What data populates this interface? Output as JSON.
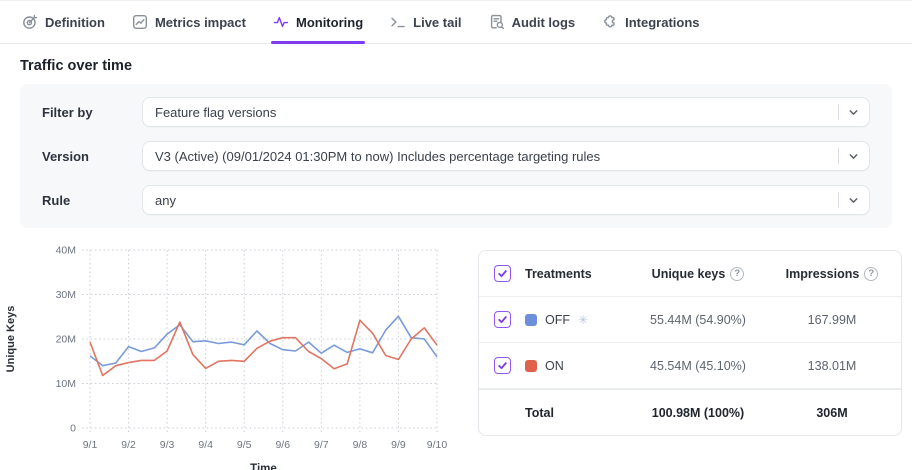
{
  "tabs": [
    {
      "label": "Definition",
      "icon": "definition-target-icon",
      "active": false
    },
    {
      "label": "Metrics impact",
      "icon": "metrics-chart-icon",
      "active": false
    },
    {
      "label": "Monitoring",
      "icon": "monitoring-pulse-icon",
      "active": true
    },
    {
      "label": "Live tail",
      "icon": "live-tail-terminal-icon",
      "active": false
    },
    {
      "label": "Audit logs",
      "icon": "audit-logs-doc-search-icon",
      "active": false
    },
    {
      "label": "Integrations",
      "icon": "integrations-puzzle-icon",
      "active": false
    }
  ],
  "section": {
    "title": "Traffic over time"
  },
  "filters": {
    "rows": [
      {
        "label": "Filter by",
        "value": "Feature flag versions"
      },
      {
        "label": "Version",
        "value": "V3 (Active) (09/01/2024 01:30PM to now) Includes percentage targeting rules"
      },
      {
        "label": "Rule",
        "value": "any"
      }
    ]
  },
  "chart_data": {
    "type": "line",
    "title": "Traffic over time",
    "xlabel": "Time",
    "ylabel": "Unique Keys",
    "ylim": [
      0,
      40
    ],
    "y_ticks": [
      {
        "v": 0,
        "label": "0"
      },
      {
        "v": 10,
        "label": "10M"
      },
      {
        "v": 20,
        "label": "20M"
      },
      {
        "v": 30,
        "label": "30M"
      },
      {
        "v": 40,
        "label": "40M"
      }
    ],
    "x_ticks": [
      "9/1",
      "9/2",
      "9/3",
      "9/4",
      "9/5",
      "9/6",
      "9/7",
      "9/8",
      "9/9",
      "9/10"
    ],
    "x_range_days": [
      0,
      9
    ],
    "grid": "dotted",
    "legend_position": "table-right",
    "x": [
      0,
      0.33,
      0.67,
      1,
      1.33,
      1.67,
      2,
      2.33,
      2.67,
      3,
      3.33,
      3.67,
      4,
      4.33,
      4.67,
      5,
      5.33,
      5.67,
      6,
      6.33,
      6.67,
      7,
      7.33,
      7.67,
      8,
      8.33,
      8.67,
      9
    ],
    "series": [
      {
        "name": "OFF",
        "color": "#7a9bd9",
        "unit": "M",
        "values": [
          16.2,
          14.0,
          14.6,
          18.3,
          17.2,
          18.0,
          21.1,
          23.2,
          19.4,
          19.6,
          19.0,
          19.3,
          18.7,
          21.8,
          19.0,
          17.6,
          17.3,
          19.3,
          16.8,
          18.6,
          17.0,
          17.8,
          16.9,
          22.0,
          25.1,
          20.3,
          20.0,
          16.0
        ]
      },
      {
        "name": "ON",
        "color": "#e17561",
        "unit": "M",
        "values": [
          19.3,
          11.8,
          14.0,
          14.7,
          15.2,
          15.2,
          17.3,
          23.8,
          16.5,
          13.4,
          15.0,
          15.2,
          15.0,
          17.9,
          19.5,
          20.3,
          20.3,
          17.2,
          15.6,
          13.3,
          14.4,
          24.2,
          21.3,
          16.3,
          15.4,
          20.0,
          22.5,
          18.6
        ]
      }
    ]
  },
  "treatments_table": {
    "headers": {
      "treatments": "Treatments",
      "unique_keys": "Unique keys",
      "impressions": "Impressions"
    },
    "rows": [
      {
        "name": "OFF",
        "swatch_color": "#6d8fdb",
        "default_marker": true,
        "checked": true,
        "unique_keys": "55.44M (54.90%)",
        "impressions": "167.99M"
      },
      {
        "name": "ON",
        "swatch_color": "#e0604c",
        "default_marker": false,
        "checked": true,
        "unique_keys": "45.54M (45.10%)",
        "impressions": "138.01M"
      }
    ],
    "total": {
      "label": "Total",
      "unique_keys": "100.98M (100%)",
      "impressions": "306M"
    }
  },
  "colors": {
    "accent": "#7e3bf0",
    "grid": "#c9ced6",
    "tick_text": "#6f7680",
    "axis_title": "#2a2f38"
  }
}
